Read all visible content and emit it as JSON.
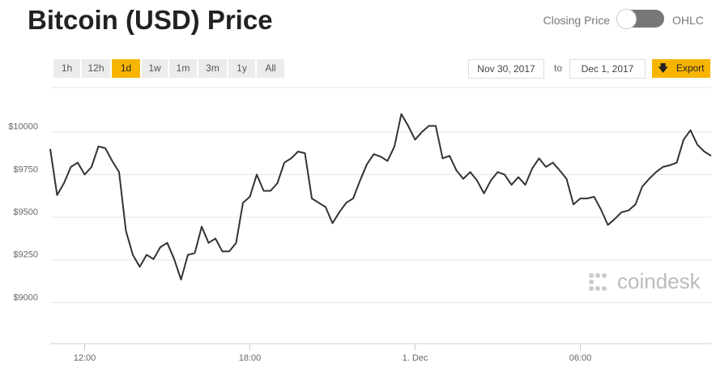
{
  "title": "Bitcoin (USD) Price",
  "toggle": {
    "left": "Closing Price",
    "right": "OHLC"
  },
  "ranges": [
    "1h",
    "12h",
    "1d",
    "1w",
    "1m",
    "3m",
    "1y",
    "All"
  ],
  "active_range": "1d",
  "date_from": "Nov 30, 2017",
  "date_sep": "to",
  "date_to": "Dec 1, 2017",
  "export": "Export",
  "chart_data": {
    "type": "line",
    "color": "#333333",
    "watermark": "coindesk",
    "grid": true,
    "x": [
      10.75,
      11,
      11.25,
      11.5,
      11.75,
      12,
      12.25,
      12.5,
      12.75,
      13,
      13.25,
      13.5,
      13.75,
      14,
      14.25,
      14.5,
      14.75,
      15,
      15.25,
      15.5,
      15.75,
      16,
      16.25,
      16.5,
      16.75,
      17,
      17.25,
      17.5,
      17.75,
      18,
      18.25,
      18.5,
      18.75,
      19,
      19.25,
      19.5,
      19.75,
      20,
      20.25,
      20.5,
      20.75,
      21,
      21.25,
      21.5,
      21.75,
      22,
      22.25,
      22.5,
      22.75,
      23,
      23.25,
      23.5,
      23.75,
      24,
      24.25,
      24.5,
      24.75,
      25,
      25.25,
      25.5,
      25.75,
      26,
      26.25,
      26.5,
      26.75,
      27,
      27.25,
      27.5,
      27.75,
      28,
      28.25,
      28.5,
      28.75,
      29,
      29.25,
      29.5,
      29.75,
      30,
      30.25,
      30.5,
      30.75,
      31,
      31.25,
      31.5,
      31.75,
      32,
      32.25,
      32.5,
      32.75,
      33,
      33.25,
      33.5,
      33.75,
      34,
      34.25,
      34.5,
      34.75
    ],
    "values": [
      9900,
      9630,
      9700,
      9795,
      9820,
      9750,
      9795,
      9915,
      9905,
      9830,
      9765,
      9420,
      9280,
      9210,
      9280,
      9255,
      9325,
      9350,
      9255,
      9135,
      9280,
      9290,
      9445,
      9350,
      9375,
      9300,
      9300,
      9350,
      9585,
      9620,
      9750,
      9655,
      9655,
      9700,
      9820,
      9845,
      9885,
      9875,
      9610,
      9585,
      9560,
      9465,
      9530,
      9585,
      9610,
      9715,
      9810,
      9870,
      9855,
      9830,
      9915,
      10105,
      10035,
      9955,
      10000,
      10035,
      10035,
      9845,
      9860,
      9775,
      9725,
      9765,
      9715,
      9640,
      9715,
      9765,
      9750,
      9690,
      9735,
      9690,
      9785,
      9845,
      9795,
      9820,
      9775,
      9725,
      9575,
      9610,
      9610,
      9620,
      9545,
      9455,
      9490,
      9530,
      9540,
      9575,
      9680,
      9725,
      9765,
      9795,
      9805,
      9820,
      9955,
      10010,
      9925,
      9885,
      9860
    ],
    "xlim": [
      10.75,
      34.75
    ],
    "xticks": [
      {
        "value": 12,
        "label": "12:00"
      },
      {
        "value": 18,
        "label": "18:00"
      },
      {
        "value": 24,
        "label": "1. Dec"
      },
      {
        "value": 30,
        "label": "06:00"
      }
    ],
    "ylim": [
      8760,
      10260
    ],
    "yticks": [
      {
        "value": 9000,
        "label": "$9000"
      },
      {
        "value": 9250,
        "label": "$9250"
      },
      {
        "value": 9500,
        "label": "$9500"
      },
      {
        "value": 9750,
        "label": "$9750"
      },
      {
        "value": 10000,
        "label": "$10000"
      }
    ]
  }
}
